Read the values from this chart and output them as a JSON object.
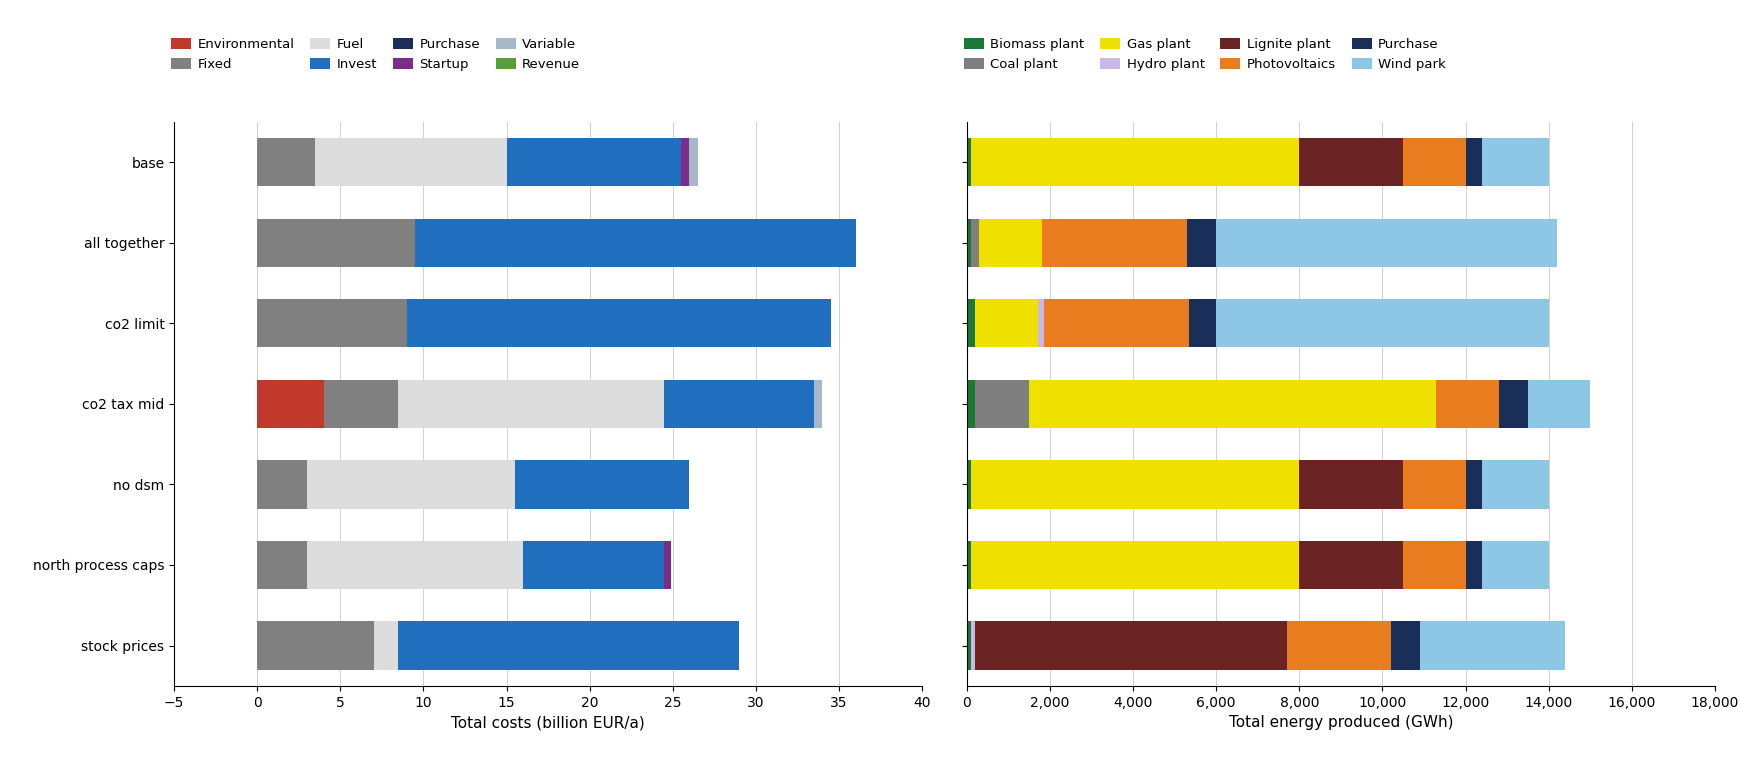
{
  "scenarios": [
    "base",
    "all together",
    "co2 limit",
    "co2 tax mid",
    "no dsm",
    "north process caps",
    "stock prices"
  ],
  "left_legend_colors": {
    "Environmental": "#c0392b",
    "Fixed": "#808080",
    "Fuel": "#dcdcdc",
    "Invest": "#1f6fbe",
    "Purchase": "#1a2e5a",
    "Startup": "#7b2d8b",
    "Variable": "#a9b8c8",
    "Revenue": "#5a9e3a"
  },
  "left_legend_order": [
    "Environmental",
    "Fixed",
    "Fuel",
    "Invest",
    "Purchase",
    "Startup",
    "Variable",
    "Revenue"
  ],
  "costs": {
    "Environmental": [
      0,
      0,
      0,
      4.0,
      0,
      0,
      0
    ],
    "Fixed": [
      3.5,
      9.5,
      9.0,
      4.5,
      3.0,
      3.0,
      7.0
    ],
    "Fuel": [
      11.5,
      0,
      0,
      16.0,
      12.5,
      13.0,
      1.5
    ],
    "Invest": [
      10.5,
      26.5,
      25.5,
      9.0,
      10.5,
      8.5,
      20.5
    ],
    "Purchase": [
      0,
      0,
      0,
      0,
      0,
      0,
      0
    ],
    "Startup": [
      0.5,
      0,
      0,
      0,
      0,
      0.4,
      0
    ],
    "Variable": [
      0.5,
      0,
      0,
      0.5,
      0,
      0,
      0
    ],
    "Revenue": [
      0,
      0,
      0,
      0,
      0,
      0,
      0
    ]
  },
  "right_legend_colors": {
    "Biomass plant": "#1a7a35",
    "Coal plant": "#7f7f7f",
    "Gas plant": "#f0e000",
    "Hydro plant": "#c9b8e8",
    "Lignite plant": "#6b2222",
    "Photovoltaics": "#e87c1e",
    "Purchase": "#1a2e5a",
    "Wind park": "#8ec6e6"
  },
  "right_legend_order": [
    "Biomass plant",
    "Coal plant",
    "Gas plant",
    "Hydro plant",
    "Lignite plant",
    "Photovoltaics",
    "Purchase",
    "Wind park"
  ],
  "energy": {
    "Biomass plant": [
      100,
      100,
      200,
      200,
      100,
      100,
      100
    ],
    "Coal plant": [
      0,
      200,
      0,
      1300,
      0,
      0,
      0
    ],
    "Gas plant": [
      7900,
      1500,
      1500,
      9800,
      7900,
      7900,
      0
    ],
    "Hydro plant": [
      0,
      0,
      150,
      0,
      0,
      0,
      100
    ],
    "Lignite plant": [
      2500,
      0,
      0,
      0,
      2500,
      2500,
      7500
    ],
    "Photovoltaics": [
      1500,
      3500,
      3500,
      1500,
      1500,
      1500,
      2500
    ],
    "Purchase": [
      400,
      700,
      650,
      700,
      400,
      400,
      700
    ],
    "Wind park": [
      1600,
      8200,
      8000,
      1500,
      1600,
      1600,
      3500
    ]
  },
  "left_xlim": [
    -5,
    40
  ],
  "left_xticks": [
    -5,
    0,
    5,
    10,
    15,
    20,
    25,
    30,
    35,
    40
  ],
  "right_xlim": [
    0,
    18000
  ],
  "right_xticks": [
    0,
    2000,
    4000,
    6000,
    8000,
    10000,
    12000,
    14000,
    16000,
    18000
  ],
  "left_xlabel": "Total costs (billion EUR/a)",
  "right_xlabel": "Total energy produced (GWh)",
  "bar_height": 0.6
}
